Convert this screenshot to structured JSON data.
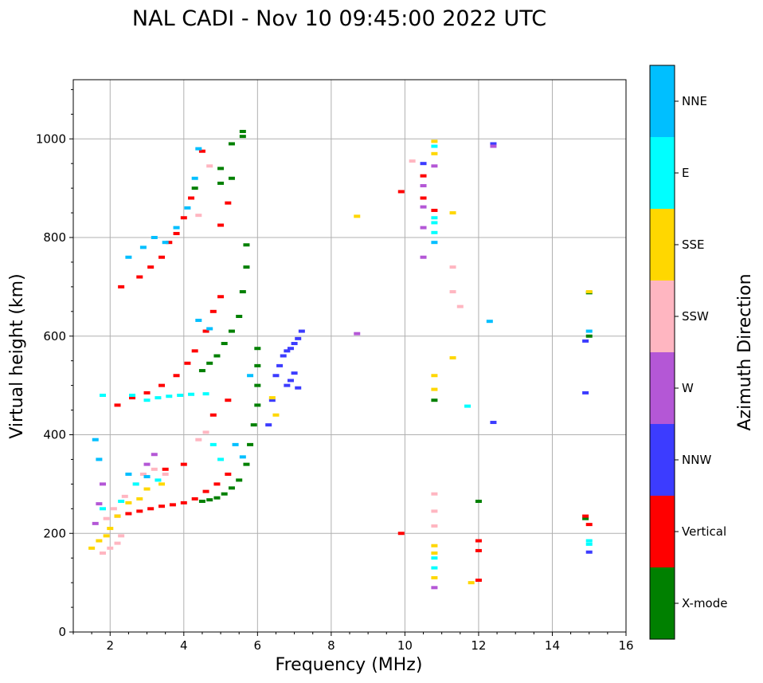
{
  "chart_data": {
    "type": "scatter",
    "title": "NAL CADI - Nov 10 09:45:00 2022 UTC",
    "xlabel": "Frequency (MHz)",
    "ylabel": "Virtual height (km)",
    "xlim": [
      1,
      16
    ],
    "ylim": [
      0,
      1120
    ],
    "xticks": [
      2,
      4,
      6,
      8,
      10,
      12,
      14,
      16
    ],
    "yticks": [
      0,
      200,
      400,
      600,
      800,
      1000
    ],
    "grid": true,
    "colorbar": {
      "label": "Azimuth Direction",
      "categories": [
        {
          "name": "X-mode",
          "color": "#008000"
        },
        {
          "name": "Vertical",
          "color": "#ff0000"
        },
        {
          "name": "NNW",
          "color": "#3c3cff"
        },
        {
          "name": "W",
          "color": "#b457d6"
        },
        {
          "name": "SSW",
          "color": "#ffb6c1"
        },
        {
          "name": "SSE",
          "color": "#ffd700"
        },
        {
          "name": "E",
          "color": "#00ffff"
        },
        {
          "name": "NNE",
          "color": "#00bfff"
        }
      ]
    },
    "series": [
      {
        "name": "X-mode",
        "points": [
          [
            4.5,
            265
          ],
          [
            4.7,
            268
          ],
          [
            4.9,
            272
          ],
          [
            5.1,
            280
          ],
          [
            5.3,
            292
          ],
          [
            5.5,
            308
          ],
          [
            5.7,
            340
          ],
          [
            5.8,
            380
          ],
          [
            5.9,
            420
          ],
          [
            6.0,
            460
          ],
          [
            6.0,
            500
          ],
          [
            6.0,
            540
          ],
          [
            6.0,
            575
          ],
          [
            4.5,
            530
          ],
          [
            4.7,
            545
          ],
          [
            4.9,
            560
          ],
          [
            5.1,
            585
          ],
          [
            5.3,
            610
          ],
          [
            5.5,
            640
          ],
          [
            5.6,
            690
          ],
          [
            5.7,
            740
          ],
          [
            5.7,
            785
          ],
          [
            4.3,
            900
          ],
          [
            5.0,
            940
          ],
          [
            5.3,
            990
          ],
          [
            5.6,
            1015
          ],
          [
            10.8,
            470
          ],
          [
            12.0,
            265
          ],
          [
            14.9,
            230
          ],
          [
            15.0,
            600
          ],
          [
            15.0,
            688
          ],
          [
            5.0,
            910
          ],
          [
            5.3,
            920
          ],
          [
            5.6,
            1005
          ]
        ]
      },
      {
        "name": "Vertical",
        "points": [
          [
            2.2,
            235
          ],
          [
            2.5,
            240
          ],
          [
            2.8,
            245
          ],
          [
            3.1,
            250
          ],
          [
            3.4,
            255
          ],
          [
            3.7,
            258
          ],
          [
            4.0,
            262
          ],
          [
            4.3,
            270
          ],
          [
            4.6,
            285
          ],
          [
            4.9,
            300
          ],
          [
            5.2,
            320
          ],
          [
            4.0,
            340
          ],
          [
            3.5,
            330
          ],
          [
            2.2,
            460
          ],
          [
            2.6,
            475
          ],
          [
            3.0,
            485
          ],
          [
            3.4,
            500
          ],
          [
            3.8,
            520
          ],
          [
            4.1,
            545
          ],
          [
            4.3,
            570
          ],
          [
            4.6,
            610
          ],
          [
            4.8,
            650
          ],
          [
            5.0,
            680
          ],
          [
            5.2,
            470
          ],
          [
            2.8,
            720
          ],
          [
            3.1,
            740
          ],
          [
            3.4,
            760
          ],
          [
            3.6,
            790
          ],
          [
            3.8,
            808
          ],
          [
            4.0,
            840
          ],
          [
            4.2,
            880
          ],
          [
            4.5,
            975
          ],
          [
            5.0,
            825
          ],
          [
            5.2,
            870
          ],
          [
            4.8,
            440
          ],
          [
            9.9,
            893
          ],
          [
            10.5,
            925
          ],
          [
            10.5,
            880
          ],
          [
            10.8,
            855
          ],
          [
            9.9,
            200
          ],
          [
            12.0,
            105
          ],
          [
            12.0,
            165
          ],
          [
            12.0,
            185
          ],
          [
            14.9,
            235
          ],
          [
            15.0,
            218
          ],
          [
            2.3,
            700
          ]
        ]
      },
      {
        "name": "NNW",
        "points": [
          [
            6.3,
            420
          ],
          [
            6.4,
            470
          ],
          [
            6.5,
            520
          ],
          [
            6.6,
            540
          ],
          [
            6.7,
            560
          ],
          [
            6.8,
            570
          ],
          [
            6.9,
            575
          ],
          [
            7.0,
            585
          ],
          [
            7.1,
            595
          ],
          [
            7.2,
            610
          ],
          [
            6.8,
            500
          ],
          [
            6.9,
            510
          ],
          [
            7.0,
            525
          ],
          [
            7.1,
            495
          ],
          [
            10.5,
            950
          ],
          [
            12.4,
            990
          ],
          [
            12.4,
            425
          ],
          [
            14.9,
            485
          ],
          [
            14.9,
            590
          ],
          [
            15.0,
            162
          ]
        ]
      },
      {
        "name": "W",
        "points": [
          [
            1.6,
            220
          ],
          [
            1.7,
            260
          ],
          [
            1.8,
            300
          ],
          [
            3.0,
            340
          ],
          [
            3.2,
            360
          ],
          [
            8.7,
            605
          ],
          [
            10.5,
            760
          ],
          [
            10.5,
            820
          ],
          [
            10.5,
            862
          ],
          [
            10.5,
            905
          ],
          [
            10.8,
            945
          ],
          [
            10.8,
            90
          ],
          [
            12.4,
            985
          ]
        ]
      },
      {
        "name": "SSW",
        "points": [
          [
            1.8,
            160
          ],
          [
            2.0,
            170
          ],
          [
            2.2,
            180
          ],
          [
            2.3,
            195
          ],
          [
            1.9,
            230
          ],
          [
            2.1,
            250
          ],
          [
            2.4,
            275
          ],
          [
            2.7,
            300
          ],
          [
            2.9,
            320
          ],
          [
            3.2,
            330
          ],
          [
            3.5,
            320
          ],
          [
            4.4,
            390
          ],
          [
            4.6,
            405
          ],
          [
            4.4,
            845
          ],
          [
            4.7,
            945
          ],
          [
            10.2,
            955
          ],
          [
            10.8,
            280
          ],
          [
            10.8,
            245
          ],
          [
            10.8,
            215
          ],
          [
            11.3,
            740
          ],
          [
            11.3,
            690
          ],
          [
            11.5,
            660
          ]
        ]
      },
      {
        "name": "SSE",
        "points": [
          [
            1.5,
            170
          ],
          [
            1.7,
            185
          ],
          [
            1.9,
            195
          ],
          [
            2.0,
            210
          ],
          [
            2.2,
            235
          ],
          [
            2.5,
            262
          ],
          [
            2.8,
            270
          ],
          [
            3.0,
            290
          ],
          [
            3.4,
            300
          ],
          [
            6.5,
            440
          ],
          [
            6.4,
            475
          ],
          [
            8.7,
            843
          ],
          [
            10.8,
            492
          ],
          [
            10.8,
            520
          ],
          [
            10.8,
            175
          ],
          [
            10.8,
            160
          ],
          [
            10.8,
            110
          ],
          [
            11.3,
            850
          ],
          [
            11.3,
            556
          ],
          [
            11.8,
            100
          ],
          [
            10.8,
            970
          ],
          [
            10.8,
            995
          ],
          [
            15.0,
            690
          ]
        ]
      },
      {
        "name": "E",
        "points": [
          [
            1.8,
            250
          ],
          [
            2.3,
            265
          ],
          [
            2.6,
            480
          ],
          [
            3.0,
            470
          ],
          [
            3.3,
            475
          ],
          [
            3.6,
            478
          ],
          [
            3.9,
            480
          ],
          [
            4.2,
            482
          ],
          [
            4.6,
            483
          ],
          [
            1.8,
            480
          ],
          [
            2.7,
            300
          ],
          [
            3.3,
            308
          ],
          [
            4.8,
            380
          ],
          [
            5.0,
            350
          ],
          [
            10.8,
            830
          ],
          [
            10.8,
            840
          ],
          [
            10.8,
            810
          ],
          [
            10.8,
            150
          ],
          [
            10.8,
            130
          ],
          [
            11.7,
            458
          ],
          [
            15.0,
            178
          ],
          [
            15.0,
            185
          ],
          [
            10.8,
            985
          ]
        ]
      },
      {
        "name": "NNE",
        "points": [
          [
            3.5,
            790
          ],
          [
            3.8,
            820
          ],
          [
            4.1,
            860
          ],
          [
            4.4,
            980
          ],
          [
            4.3,
            920
          ],
          [
            2.5,
            760
          ],
          [
            2.9,
            780
          ],
          [
            3.2,
            800
          ],
          [
            4.4,
            632
          ],
          [
            4.7,
            615
          ],
          [
            5.4,
            380
          ],
          [
            5.6,
            355
          ],
          [
            5.8,
            520
          ],
          [
            10.8,
            790
          ],
          [
            12.3,
            630
          ],
          [
            15.0,
            610
          ],
          [
            1.6,
            390
          ],
          [
            1.7,
            350
          ],
          [
            2.5,
            320
          ],
          [
            3.0,
            315
          ]
        ]
      }
    ]
  }
}
